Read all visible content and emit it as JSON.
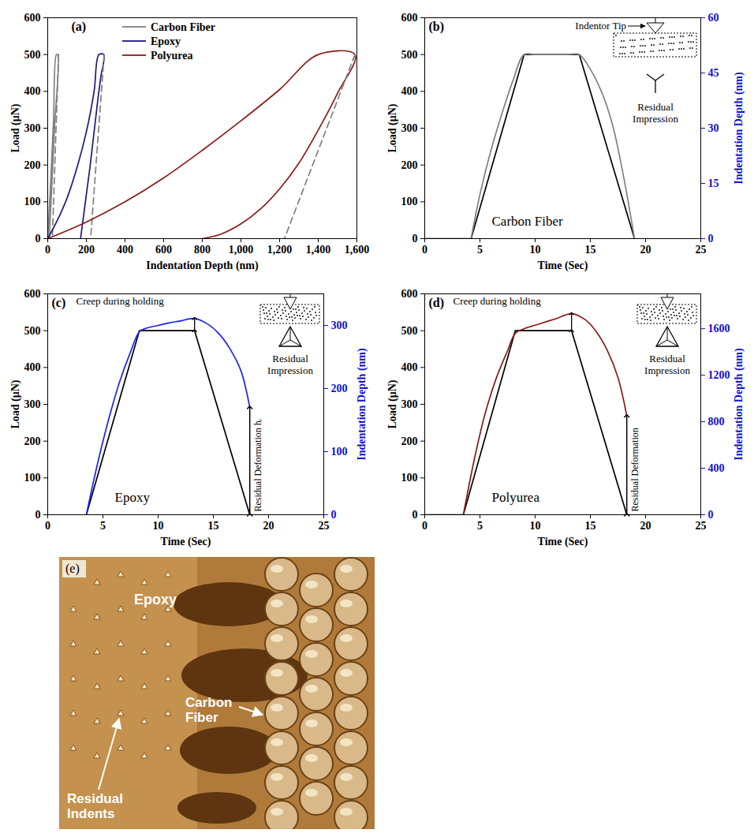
{
  "chart_data": [
    {
      "type": "line",
      "annotations": {
        "panel_label": "(a)"
      },
      "legend": "top",
      "x_label": "Indentation Depth (nm)",
      "y_label": "Load (μN)",
      "xlim": [
        0,
        1600
      ],
      "xticks": [
        0,
        200,
        400,
        600,
        800,
        1000,
        1200,
        1400,
        1600
      ],
      "ylim": [
        0,
        600
      ],
      "yticks": [
        0,
        100,
        200,
        300,
        400,
        500,
        600
      ],
      "series": [
        {
          "name": "Carbon Fiber",
          "color": "#808080",
          "line_style": "solid",
          "x": [
            0,
            15,
            30,
            45,
            52,
            35,
            20,
            8
          ],
          "values": [
            0,
            150,
            320,
            500,
            500,
            300,
            130,
            0
          ]
        },
        {
          "color": "#808080",
          "line_style": "dashed",
          "x": [
            56,
            24
          ],
          "values": [
            500,
            0
          ]
        },
        {
          "name": "Epoxy",
          "color": "#1a1a80",
          "line_style": "solid",
          "x": [
            0,
            50,
            100,
            150,
            200,
            240,
            265,
            290,
            275,
            260,
            240,
            220,
            200,
            185,
            170
          ],
          "values": [
            0,
            50,
            110,
            190,
            290,
            400,
            500,
            500,
            440,
            380,
            290,
            200,
            120,
            60,
            0
          ]
        },
        {
          "color": "#808080",
          "line_style": "dashed",
          "x": [
            292,
            222
          ],
          "values": [
            500,
            0
          ]
        },
        {
          "name": "Polyurea",
          "color": "#8b1a1a",
          "line_style": "solid",
          "x": [
            0,
            200,
            400,
            600,
            800,
            1000,
            1200,
            1400,
            1590,
            1500,
            1400,
            1300,
            1200,
            1100,
            1000,
            900,
            800
          ],
          "values": [
            0,
            45,
            100,
            165,
            240,
            320,
            405,
            500,
            500,
            395,
            295,
            205,
            135,
            80,
            40,
            13,
            0
          ]
        },
        {
          "color": "#808080",
          "line_style": "dashed",
          "x": [
            1590,
            1225
          ],
          "values": [
            500,
            0
          ]
        }
      ]
    },
    {
      "type": "line",
      "annotations": {
        "panel_label": "(b)",
        "material": "Carbon Fiber",
        "tip": "Indentor Tip",
        "impression": "Residual Impression"
      },
      "x_label": "Time (Sec)",
      "y_label": "Load (μN)",
      "y2_label": "Indentation Depth (nm)",
      "xlim": [
        0,
        25
      ],
      "xticks": [
        0,
        5,
        10,
        15,
        20,
        25
      ],
      "ylim": [
        0,
        600
      ],
      "yticks": [
        0,
        100,
        200,
        300,
        400,
        500,
        600
      ],
      "y2lim": [
        0,
        60
      ],
      "y2ticks": [
        0,
        15,
        30,
        45,
        60
      ],
      "series": [
        {
          "color": "#000000",
          "line_style": "solid",
          "x": [
            0,
            4.2,
            9,
            14,
            19
          ],
          "values": [
            0,
            0,
            500,
            500,
            0
          ]
        },
        {
          "color": "#808080",
          "line_style": "solid",
          "axis": "y2",
          "x": [
            4.2,
            5,
            6,
            7,
            8,
            9,
            10,
            11,
            12,
            13,
            14,
            15,
            16,
            17,
            18,
            19
          ],
          "values": [
            0,
            12,
            24,
            34,
            43,
            50,
            50,
            50,
            50,
            50,
            50,
            46,
            40,
            31,
            17,
            0
          ]
        }
      ]
    },
    {
      "type": "line",
      "annotations": {
        "panel_label": "(c)",
        "material": "Epoxy",
        "creep": "Creep during holding",
        "impression": "Residual Impression",
        "residual": "Residual Deformation hᵣ"
      },
      "x_label": "Time (Sec)",
      "y_label": "Load (μN)",
      "y2_label": "Indentation Depth (nm)",
      "xlim": [
        0,
        25
      ],
      "xticks": [
        0,
        5,
        10,
        15,
        20,
        25
      ],
      "ylim": [
        0,
        600
      ],
      "yticks": [
        0,
        100,
        200,
        300,
        400,
        500,
        600
      ],
      "y2lim": [
        0,
        350
      ],
      "y2ticks": [
        0,
        100,
        200,
        300
      ],
      "series": [
        {
          "color": "#000000",
          "line_style": "solid",
          "x": [
            3.5,
            8.3,
            13.3,
            18.3
          ],
          "values": [
            0,
            500,
            500,
            0
          ]
        },
        {
          "color": "#1f1fff",
          "line_style": "solid",
          "axis": "y2",
          "x": [
            3.5,
            4.5,
            5.5,
            6.5,
            7.5,
            8.3,
            9,
            10,
            11,
            12,
            13.3,
            14.5,
            15.5,
            16.5,
            17.5,
            18.3
          ],
          "values": [
            0,
            80,
            150,
            210,
            258,
            290,
            296,
            300,
            304,
            307,
            311,
            302,
            287,
            263,
            228,
            170
          ]
        }
      ]
    },
    {
      "type": "line",
      "annotations": {
        "panel_label": "(d)",
        "material": "Polyurea",
        "creep": "Creep during holding",
        "impression": "Residual Impression",
        "residual": "Residual Deformation"
      },
      "x_label": "Time (Sec)",
      "y_label": "Load (μN)",
      "y2_label": "Indentation Depth (nm)",
      "xlim": [
        0,
        25
      ],
      "xticks": [
        0,
        5,
        10,
        15,
        20,
        25
      ],
      "ylim": [
        0,
        600
      ],
      "yticks": [
        0,
        100,
        200,
        300,
        400,
        500,
        600
      ],
      "y2lim": [
        0,
        1900
      ],
      "y2ticks": [
        0,
        400,
        800,
        1200,
        1600
      ],
      "series": [
        {
          "color": "#000000",
          "line_style": "solid",
          "x": [
            0,
            3.5,
            8.2,
            13.3,
            18.3
          ],
          "values": [
            0,
            0,
            500,
            500,
            0
          ]
        },
        {
          "color": "#8b1a1a",
          "line_style": "solid",
          "axis": "y2",
          "x": [
            3.5,
            4.5,
            5.5,
            6.5,
            7.5,
            8.2,
            9,
            10,
            11,
            12,
            13.3,
            14.5,
            15.5,
            16.5,
            17.5,
            18.3
          ],
          "values": [
            0,
            480,
            880,
            1180,
            1410,
            1560,
            1600,
            1630,
            1660,
            1690,
            1730,
            1680,
            1580,
            1420,
            1180,
            850
          ]
        }
      ]
    }
  ],
  "micrograph": {
    "panel_label": "(e)",
    "labels": {
      "epoxy": "Epoxy",
      "fiber": "Carbon Fiber",
      "indents": "Residual Indents"
    }
  }
}
